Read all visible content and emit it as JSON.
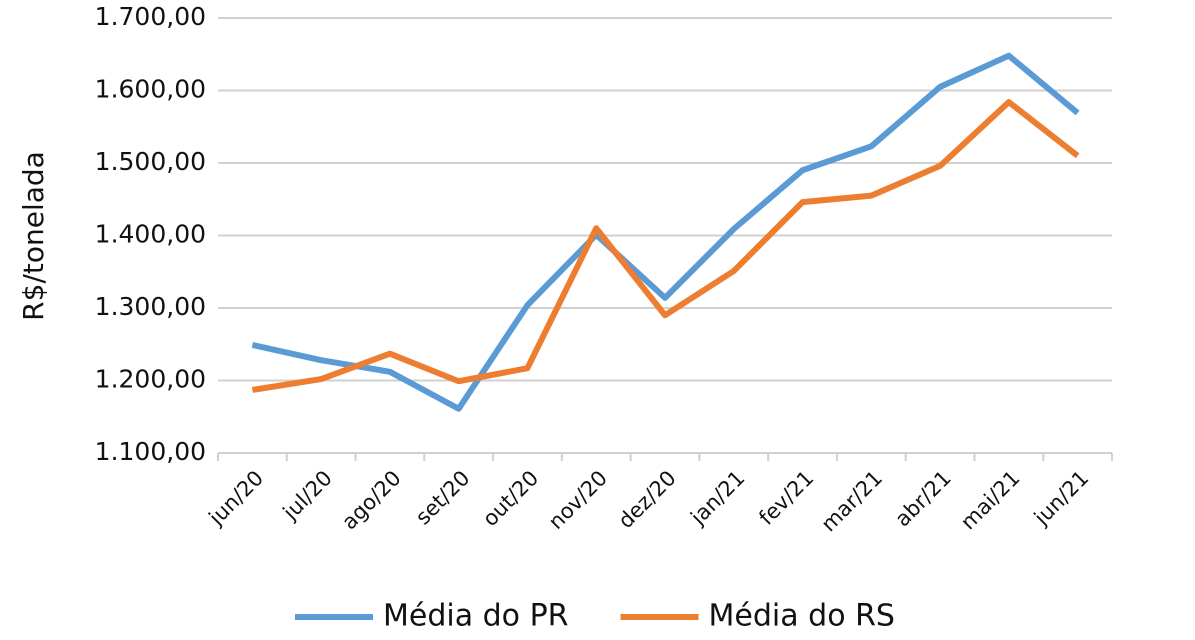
{
  "chart_data": {
    "type": "line",
    "y_label": "R$/tonelada",
    "categories": [
      "jun/20",
      "jul/20",
      "ago/20",
      "set/20",
      "out/20",
      "nov/20",
      "dez/20",
      "jan/21",
      "fev/21",
      "mar/21",
      "abr/21",
      "mai/21",
      "jun/21"
    ],
    "series": [
      {
        "name": "Média do PR",
        "color": "#5b9bd5",
        "values": [
          1249,
          1228,
          1212,
          1161,
          1304,
          1401,
          1314,
          1409,
          1490,
          1523,
          1605,
          1648,
          1569
        ]
      },
      {
        "name": "Média do RS",
        "color": "#ed7d31",
        "values": [
          1187,
          1202,
          1237,
          1199,
          1217,
          1410,
          1290,
          1351,
          1446,
          1455,
          1496,
          1584,
          1510
        ]
      }
    ],
    "ylim": [
      1100,
      1700
    ],
    "yticks": [
      {
        "value": 1100,
        "label": "1.100,00"
      },
      {
        "value": 1200,
        "label": "1.200,00"
      },
      {
        "value": 1300,
        "label": "1.300,00"
      },
      {
        "value": 1400,
        "label": "1.400,00"
      },
      {
        "value": 1500,
        "label": "1.500,00"
      },
      {
        "value": 1600,
        "label": "1.600,00"
      },
      {
        "value": 1700,
        "label": "1.700,00"
      }
    ],
    "grid": true
  }
}
